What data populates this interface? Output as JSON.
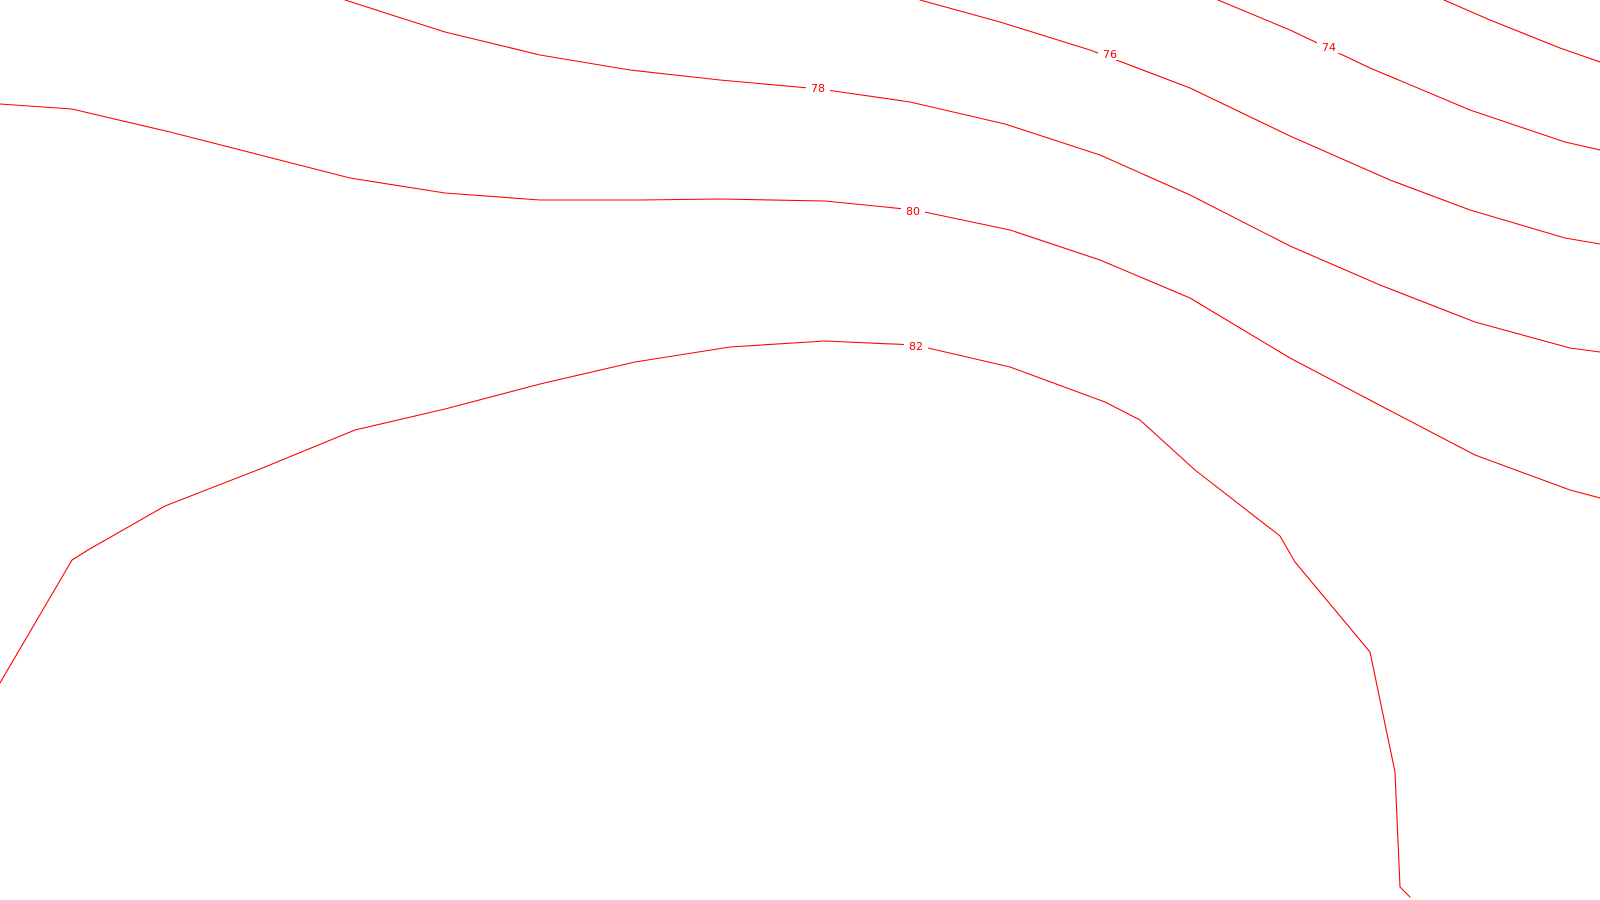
{
  "map": {
    "background_color": "#ffffff",
    "contour_color": "#ff0000",
    "contours": [
      {
        "id": "contour-unlabeled-top-right",
        "label": null
      },
      {
        "id": "contour-74",
        "label": "74"
      },
      {
        "id": "contour-76",
        "label": "76"
      },
      {
        "id": "contour-78",
        "label": "78"
      },
      {
        "id": "contour-80",
        "label": "80"
      },
      {
        "id": "contour-82",
        "label": "82"
      }
    ]
  }
}
